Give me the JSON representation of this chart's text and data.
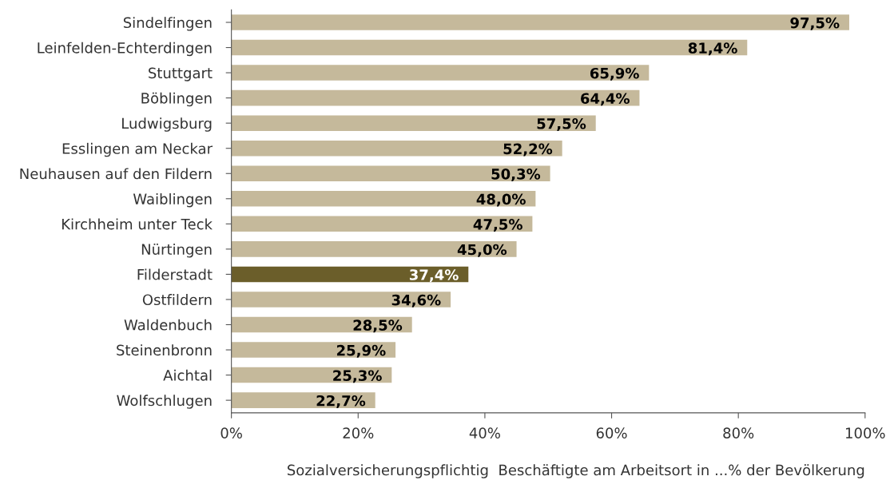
{
  "chart_data": {
    "type": "bar",
    "orientation": "horizontal",
    "categories": [
      "Sindelfingen",
      "Leinfelden-Echterdingen",
      "Stuttgart",
      "Böblingen",
      "Ludwigsburg",
      "Esslingen am Neckar",
      "Neuhausen auf den Fildern",
      "Waiblingen",
      "Kirchheim unter Teck",
      "Nürtingen",
      "Filderstadt",
      "Ostfildern",
      "Waldenbuch",
      "Steinenbronn",
      "Aichtal",
      "Wolfschlugen"
    ],
    "values": [
      97.5,
      81.4,
      65.9,
      64.4,
      57.5,
      52.2,
      50.3,
      48.0,
      47.5,
      45.0,
      37.4,
      34.6,
      28.5,
      25.9,
      25.3,
      22.7
    ],
    "value_labels": [
      "97,5%",
      "81,4%",
      "65,9%",
      "64,4%",
      "57,5%",
      "52,2%",
      "50,3%",
      "48,0%",
      "47,5%",
      "45,0%",
      "37,4%",
      "34,6%",
      "28,5%",
      "25,9%",
      "25,3%",
      "22,7%"
    ],
    "colors": [
      "#c5b99b",
      "#c5b99b",
      "#c5b99b",
      "#c5b99b",
      "#c5b99b",
      "#c5b99b",
      "#c5b99b",
      "#c5b99b",
      "#c5b99b",
      "#c5b99b",
      "#6b5e2a",
      "#c5b99b",
      "#c5b99b",
      "#c5b99b",
      "#c5b99b",
      "#c5b99b"
    ],
    "xlim": [
      0,
      100
    ],
    "xticks": [
      {
        "value": 0,
        "label": "0%"
      },
      {
        "value": 20,
        "label": "20%"
      },
      {
        "value": 40,
        "label": "40%"
      },
      {
        "value": 60,
        "label": "60%"
      },
      {
        "value": 80,
        "label": "80%"
      },
      {
        "value": 100,
        "label": "100%"
      }
    ],
    "xlabel": "Sozialversicherungspflichtig  Beschäftigte am Arbeitsort in ...% der Bevölkerung",
    "grid": false,
    "legend": false
  }
}
